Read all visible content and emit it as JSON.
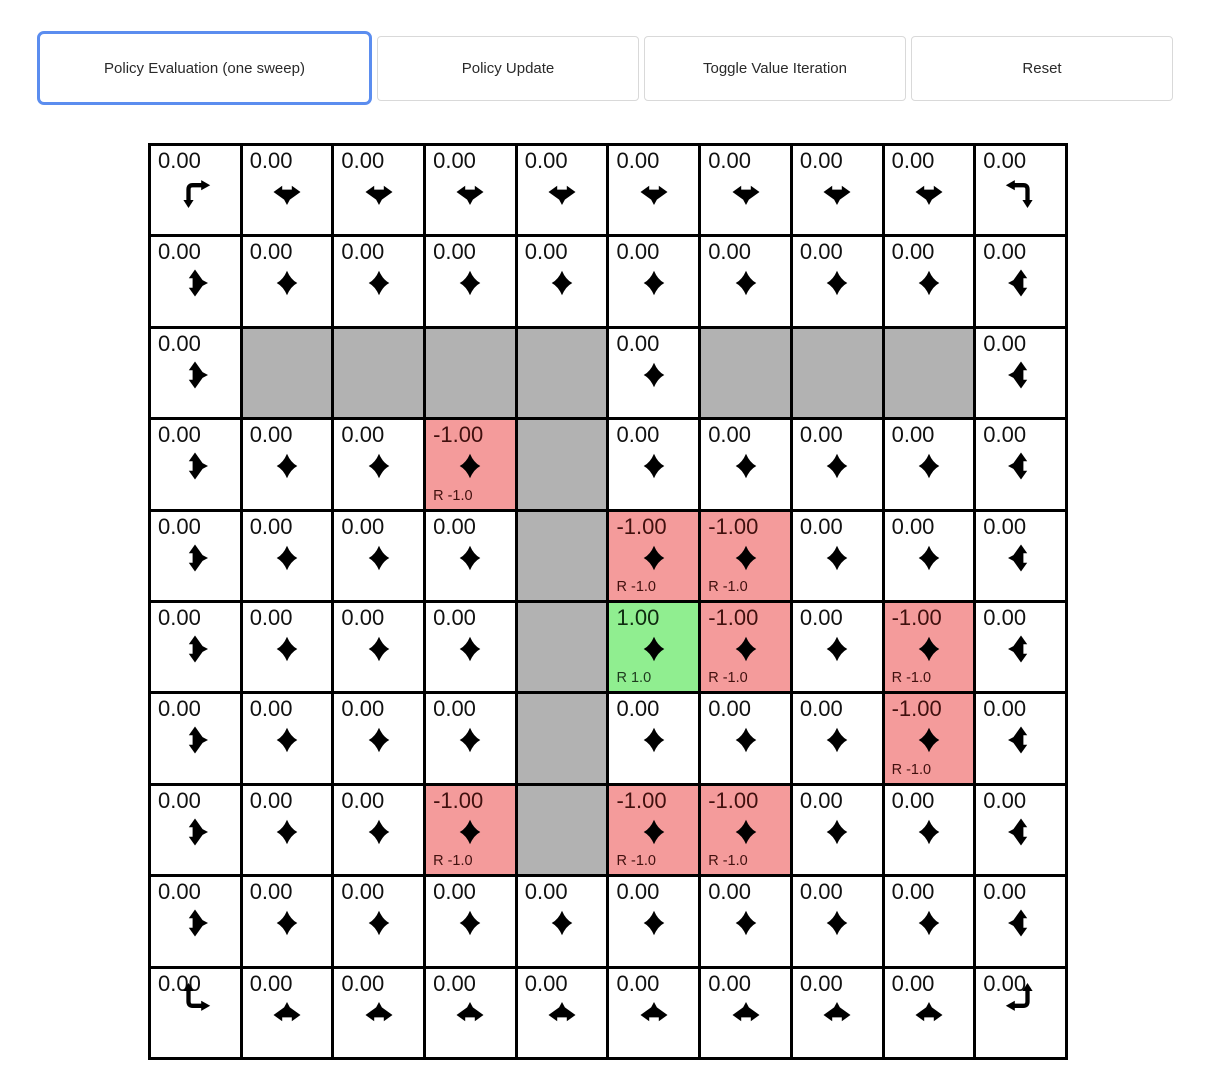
{
  "toolbar": {
    "buttons": [
      {
        "label": "Policy Evaluation (one sweep)",
        "active": true
      },
      {
        "label": "Policy Update",
        "active": false
      },
      {
        "label": "Toggle Value Iteration",
        "active": false
      },
      {
        "label": "Reset",
        "active": false
      }
    ]
  },
  "colors": {
    "wall": "#b2b2b2",
    "reward_negative_bg": "#f49b9b",
    "reward_positive_bg": "#90ee90",
    "grid_line": "#000000",
    "active_button_border": "#5b8def"
  },
  "grid": {
    "rows": 10,
    "cols": 10,
    "cells": [
      [
        {
          "v": "0.00",
          "a": "down+right"
        },
        {
          "v": "0.00",
          "a": "left+right+down"
        },
        {
          "v": "0.00",
          "a": "left+right+down"
        },
        {
          "v": "0.00",
          "a": "left+right+down"
        },
        {
          "v": "0.00",
          "a": "left+right+down"
        },
        {
          "v": "0.00",
          "a": "left+right+down"
        },
        {
          "v": "0.00",
          "a": "left+right+down"
        },
        {
          "v": "0.00",
          "a": "left+right+down"
        },
        {
          "v": "0.00",
          "a": "left+right+down"
        },
        {
          "v": "0.00",
          "a": "down+left"
        }
      ],
      [
        {
          "v": "0.00",
          "a": "up+down+right"
        },
        {
          "v": "0.00",
          "a": "up+down+left+right"
        },
        {
          "v": "0.00",
          "a": "up+down+left+right"
        },
        {
          "v": "0.00",
          "a": "up+down+left+right"
        },
        {
          "v": "0.00",
          "a": "up+down+left+right"
        },
        {
          "v": "0.00",
          "a": "up+down+left+right"
        },
        {
          "v": "0.00",
          "a": "up+down+left+right"
        },
        {
          "v": "0.00",
          "a": "up+down+left+right"
        },
        {
          "v": "0.00",
          "a": "up+down+left+right"
        },
        {
          "v": "0.00",
          "a": "up+down+left"
        }
      ],
      [
        {
          "v": "0.00",
          "a": "up+down+right"
        },
        {
          "wall": true
        },
        {
          "wall": true
        },
        {
          "wall": true
        },
        {
          "wall": true
        },
        {
          "v": "0.00",
          "a": "up+down+left+right"
        },
        {
          "wall": true
        },
        {
          "wall": true
        },
        {
          "wall": true
        },
        {
          "v": "0.00",
          "a": "up+down+left"
        }
      ],
      [
        {
          "v": "0.00",
          "a": "up+down+right"
        },
        {
          "v": "0.00",
          "a": "up+down+left+right"
        },
        {
          "v": "0.00",
          "a": "up+down+left+right"
        },
        {
          "v": "-1.00",
          "a": "up+down+left+right",
          "bg": "neg",
          "r": "R -1.0"
        },
        {
          "wall": true
        },
        {
          "v": "0.00",
          "a": "up+down+left+right"
        },
        {
          "v": "0.00",
          "a": "up+down+left+right"
        },
        {
          "v": "0.00",
          "a": "up+down+left+right"
        },
        {
          "v": "0.00",
          "a": "up+down+left+right"
        },
        {
          "v": "0.00",
          "a": "up+down+left"
        }
      ],
      [
        {
          "v": "0.00",
          "a": "up+down+right"
        },
        {
          "v": "0.00",
          "a": "up+down+left+right"
        },
        {
          "v": "0.00",
          "a": "up+down+left+right"
        },
        {
          "v": "0.00",
          "a": "up+down+left+right"
        },
        {
          "wall": true
        },
        {
          "v": "-1.00",
          "a": "up+down+left+right",
          "bg": "neg",
          "r": "R -1.0"
        },
        {
          "v": "-1.00",
          "a": "up+down+left+right",
          "bg": "neg",
          "r": "R -1.0"
        },
        {
          "v": "0.00",
          "a": "up+down+left+right"
        },
        {
          "v": "0.00",
          "a": "up+down+left+right"
        },
        {
          "v": "0.00",
          "a": "up+down+left"
        }
      ],
      [
        {
          "v": "0.00",
          "a": "up+down+right"
        },
        {
          "v": "0.00",
          "a": "up+down+left+right"
        },
        {
          "v": "0.00",
          "a": "up+down+left+right"
        },
        {
          "v": "0.00",
          "a": "up+down+left+right"
        },
        {
          "wall": true
        },
        {
          "v": "1.00",
          "a": "up+down+left+right",
          "bg": "pos",
          "r": "R 1.0"
        },
        {
          "v": "-1.00",
          "a": "up+down+left+right",
          "bg": "neg",
          "r": "R -1.0"
        },
        {
          "v": "0.00",
          "a": "up+down+left+right"
        },
        {
          "v": "-1.00",
          "a": "up+down+left+right",
          "bg": "neg",
          "r": "R -1.0"
        },
        {
          "v": "0.00",
          "a": "up+down+left"
        }
      ],
      [
        {
          "v": "0.00",
          "a": "up+down+right"
        },
        {
          "v": "0.00",
          "a": "up+down+left+right"
        },
        {
          "v": "0.00",
          "a": "up+down+left+right"
        },
        {
          "v": "0.00",
          "a": "up+down+left+right"
        },
        {
          "wall": true
        },
        {
          "v": "0.00",
          "a": "up+down+left+right"
        },
        {
          "v": "0.00",
          "a": "up+down+left+right"
        },
        {
          "v": "0.00",
          "a": "up+down+left+right"
        },
        {
          "v": "-1.00",
          "a": "up+down+left+right",
          "bg": "neg",
          "r": "R -1.0"
        },
        {
          "v": "0.00",
          "a": "up+down+left"
        }
      ],
      [
        {
          "v": "0.00",
          "a": "up+down+right"
        },
        {
          "v": "0.00",
          "a": "up+down+left+right"
        },
        {
          "v": "0.00",
          "a": "up+down+left+right"
        },
        {
          "v": "-1.00",
          "a": "up+down+left+right",
          "bg": "neg",
          "r": "R -1.0"
        },
        {
          "wall": true
        },
        {
          "v": "-1.00",
          "a": "up+down+left+right",
          "bg": "neg",
          "r": "R -1.0"
        },
        {
          "v": "-1.00",
          "a": "up+down+left+right",
          "bg": "neg",
          "r": "R -1.0"
        },
        {
          "v": "0.00",
          "a": "up+down+left+right"
        },
        {
          "v": "0.00",
          "a": "up+down+left+right"
        },
        {
          "v": "0.00",
          "a": "up+down+left"
        }
      ],
      [
        {
          "v": "0.00",
          "a": "up+down+right"
        },
        {
          "v": "0.00",
          "a": "up+down+left+right"
        },
        {
          "v": "0.00",
          "a": "up+down+left+right"
        },
        {
          "v": "0.00",
          "a": "up+down+left+right"
        },
        {
          "v": "0.00",
          "a": "up+down+left+right"
        },
        {
          "v": "0.00",
          "a": "up+down+left+right"
        },
        {
          "v": "0.00",
          "a": "up+down+left+right"
        },
        {
          "v": "0.00",
          "a": "up+down+left+right"
        },
        {
          "v": "0.00",
          "a": "up+down+left+right"
        },
        {
          "v": "0.00",
          "a": "up+down+left"
        }
      ],
      [
        {
          "v": "0.00",
          "a": "up+right"
        },
        {
          "v": "0.00",
          "a": "left+right+up"
        },
        {
          "v": "0.00",
          "a": "left+right+up"
        },
        {
          "v": "0.00",
          "a": "left+right+up"
        },
        {
          "v": "0.00",
          "a": "left+right+up"
        },
        {
          "v": "0.00",
          "a": "left+right+up"
        },
        {
          "v": "0.00",
          "a": "left+right+up"
        },
        {
          "v": "0.00",
          "a": "left+right+up"
        },
        {
          "v": "0.00",
          "a": "left+right+up"
        },
        {
          "v": "0.00",
          "a": "up+left"
        }
      ]
    ]
  }
}
